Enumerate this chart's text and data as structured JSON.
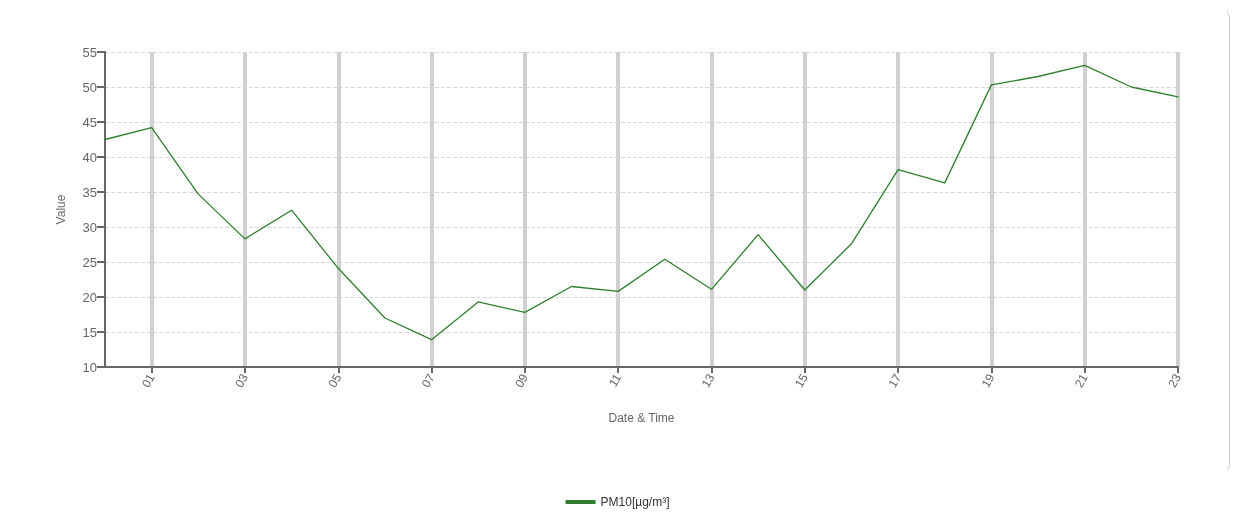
{
  "chart_data": {
    "type": "line",
    "xlabel": "Date & Time",
    "ylabel": "Value",
    "x": [
      0,
      1,
      2,
      3,
      4,
      5,
      6,
      7,
      8,
      9,
      10,
      11,
      12,
      13,
      14,
      15,
      16,
      17,
      18,
      19,
      20,
      21,
      22,
      23
    ],
    "series": [
      {
        "name": "PM10[µg/m³]",
        "color": "#2f7f2f",
        "values": [
          42.5,
          44.2,
          34.7,
          28.3,
          32.4,
          24.1,
          17.0,
          13.9,
          19.3,
          17.8,
          21.5,
          20.8,
          25.4,
          21.1,
          28.9,
          21.0,
          27.6,
          38.2,
          36.3,
          50.3,
          51.5,
          53.1,
          50.0,
          48.6
        ]
      }
    ],
    "xlim": [
      0,
      23
    ],
    "xticks": [
      {
        "value": 1,
        "label": "01"
      },
      {
        "value": 3,
        "label": "03"
      },
      {
        "value": 5,
        "label": "05"
      },
      {
        "value": 7,
        "label": "07"
      },
      {
        "value": 9,
        "label": "09"
      },
      {
        "value": 11,
        "label": "11"
      },
      {
        "value": 13,
        "label": "13"
      },
      {
        "value": 15,
        "label": "15"
      },
      {
        "value": 17,
        "label": "17"
      },
      {
        "value": 19,
        "label": "19"
      },
      {
        "value": 21,
        "label": "21"
      },
      {
        "value": 23,
        "label": "23"
      }
    ],
    "ylim": [
      10,
      55
    ],
    "yticks": [
      10,
      15,
      20,
      25,
      30,
      35,
      40,
      45,
      50,
      55
    ],
    "grid": true,
    "legend": "bottom",
    "marker": "none",
    "line_style": "solid"
  }
}
